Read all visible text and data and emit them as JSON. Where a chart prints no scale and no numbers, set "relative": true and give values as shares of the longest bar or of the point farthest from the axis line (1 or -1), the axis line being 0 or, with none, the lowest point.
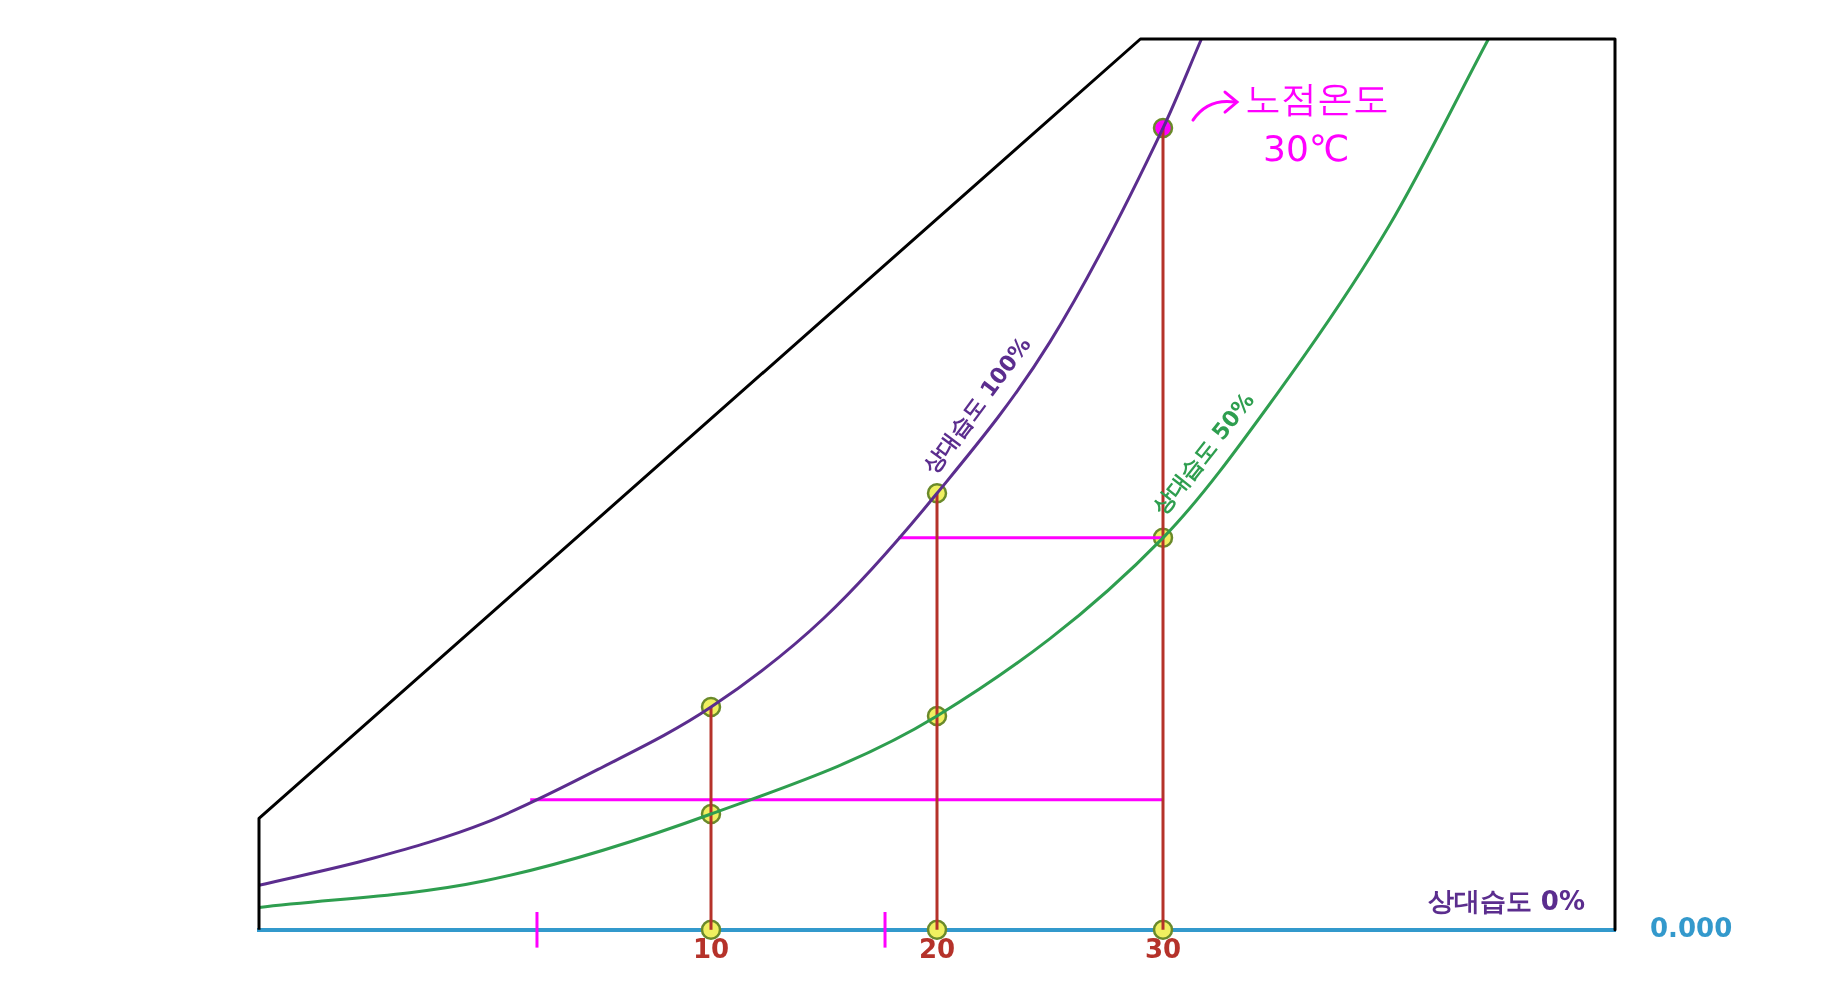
{
  "chart_data": {
    "type": "line",
    "relative": true,
    "xlim": [
      -10,
      50
    ],
    "xticks": [
      10,
      20,
      30
    ],
    "grid": false,
    "legend": false,
    "series": [
      {
        "color": "#000000",
        "x": [
          -10,
          -10,
          29,
          50,
          50
        ],
        "values": [
          0,
          0.125,
          1,
          1,
          0
        ]
      },
      {
        "name": "상대습도 100%",
        "color": "#5b2d8e",
        "x": [
          -10,
          -5,
          0,
          5,
          10,
          15,
          20,
          25,
          30,
          31.7
        ],
        "values": [
          0.05,
          0.08,
          0.12,
          0.18,
          0.25,
          0.35,
          0.49,
          0.66,
          0.9,
          1
        ]
      },
      {
        "name": "상대습도 50%",
        "color": "#2e9e4f",
        "x": [
          -10,
          0,
          10,
          20,
          30,
          35,
          40,
          44.4
        ],
        "values": [
          0.025,
          0.055,
          0.13,
          0.24,
          0.44,
          0.6,
          0.79,
          1
        ]
      },
      {
        "color": "#b5322a",
        "x": [
          10,
          10
        ],
        "values": [
          0,
          0.25
        ]
      },
      {
        "color": "#b5322a",
        "x": [
          20,
          20
        ],
        "values": [
          0,
          0.49
        ]
      },
      {
        "color": "#b5322a",
        "x": [
          30,
          30
        ],
        "values": [
          0,
          0.9
        ]
      },
      {
        "color": "#ff00ff",
        "x": [
          18.3,
          30
        ],
        "values": [
          0.44,
          0.44
        ]
      },
      {
        "color": "#ff00ff",
        "x": [
          2,
          30
        ],
        "values": [
          0.146,
          0.146
        ]
      },
      {
        "color": "#ff00ff",
        "x": [
          2.3,
          2.3
        ],
        "values": [
          -0.02,
          0.02
        ]
      },
      {
        "color": "#ff00ff",
        "x": [
          17.7,
          17.7
        ],
        "values": [
          -0.02,
          0.02
        ]
      },
      {
        "type": "scatter",
        "color": "#f0f060",
        "x": [
          10,
          20,
          30,
          10,
          20,
          30,
          10,
          20
        ],
        "values": [
          0,
          0,
          0,
          0.13,
          0.24,
          0.44,
          0.25,
          0.49
        ]
      },
      {
        "type": "scatter",
        "color": "#ff00ff",
        "x": [
          30
        ],
        "values": [
          0.9
        ]
      }
    ],
    "annotations": [
      {
        "text": "노점온도 30℃",
        "x": 30,
        "y": 0.9
      },
      "상대습도 0%",
      {
        "text": "0.000",
        "x": 50,
        "y": 0
      }
    ]
  }
}
